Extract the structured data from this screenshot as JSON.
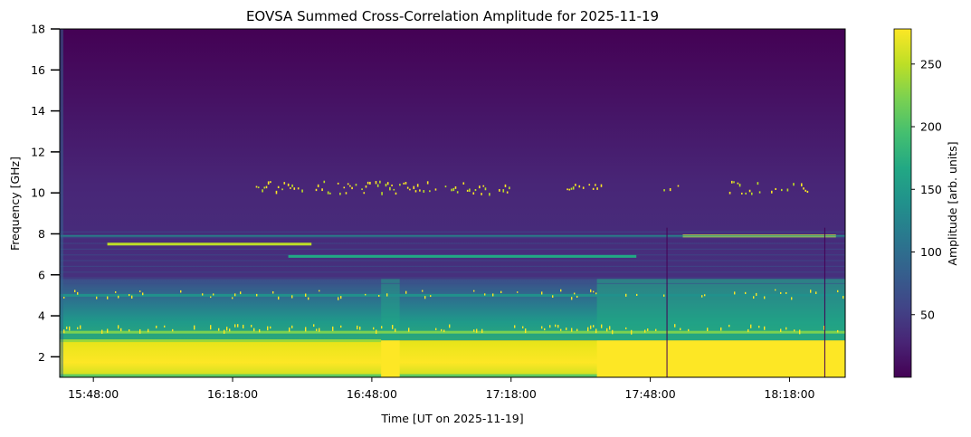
{
  "chart_data": {
    "type": "heatmap",
    "title": "EOVSA Summed Cross-Correlation Amplitude for 2025-11-19",
    "xlabel": "Time [UT on 2025-11-19]",
    "ylabel": "Frequency [GHz]",
    "x_range": [
      "15:40:45",
      "18:30:00"
    ],
    "x_ticks": [
      "15:48:00",
      "16:18:00",
      "16:48:00",
      "17:18:00",
      "17:48:00",
      "18:18:00"
    ],
    "y_range": [
      1.0,
      18.0
    ],
    "y_ticks": [
      2,
      4,
      6,
      8,
      10,
      12,
      14,
      16,
      18
    ],
    "colorbar": {
      "label": "Amplitude [arb. units]",
      "range": [
        0,
        278
      ],
      "ticks": [
        50,
        100,
        150,
        200,
        250
      ],
      "colormap": "viridis"
    },
    "low_band": {
      "freq_range_ghz": [
        1.0,
        2.8
      ],
      "typical_amplitude": 260,
      "saturated_intervals": [
        [
          "16:50:00",
          "16:54:00"
        ],
        [
          "17:36:30",
          "18:30:00"
        ]
      ]
    },
    "emission_bands": [
      {
        "freq_ghz": 3.2,
        "amplitude": 210
      },
      {
        "freq_ghz": 5.0,
        "amplitude": 140
      },
      {
        "freq_ghz": 7.5,
        "amplitude": 250,
        "interval": [
          "15:51:00",
          "16:35:00"
        ]
      },
      {
        "freq_ghz": 7.9,
        "amplitude": 270,
        "interval": [
          "17:55:00",
          "18:28:00"
        ]
      },
      {
        "freq_ghz": 6.9,
        "amplitude": 160,
        "interval": [
          "16:30:00",
          "17:45:00"
        ]
      }
    ],
    "background_amplitude": 15
  }
}
